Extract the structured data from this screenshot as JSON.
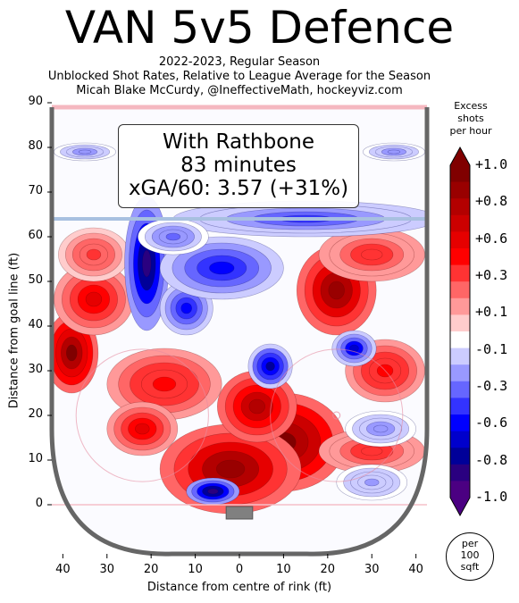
{
  "header": {
    "title": "VAN 5v5 Defence",
    "subtitle_1": "2022-2023, Regular Season",
    "subtitle_2": "Unblocked Shot Rates, Relative to League Average for the Season",
    "subtitle_3": "Micah Blake McCurdy, @IneffectiveMath, hockeyviz.com"
  },
  "annotation": {
    "line1": "With Rathbone",
    "line2": "83 minutes",
    "line3": "xGA/60: 3.57 (+31%)"
  },
  "legend": {
    "title_1": "Excess",
    "title_2": "shots",
    "title_3": "per hour",
    "ticks": [
      "+1.0",
      "+0.8",
      "+0.6",
      "+0.3",
      "+0.1",
      "-0.1",
      "-0.3",
      "-0.6",
      "-0.8",
      "-1.0"
    ],
    "unit_1": "per",
    "unit_2": "100",
    "unit_3": "sqft",
    "colors": [
      "#800000",
      "#990000",
      "#b30000",
      "#cc0000",
      "#e60000",
      "#ff0000",
      "#ff3333",
      "#ff6666",
      "#ff9999",
      "#ffcccc",
      "#ffffff",
      "#ccccff",
      "#9999ff",
      "#6666ff",
      "#3333ff",
      "#0000ff",
      "#0000cc",
      "#000099",
      "#2a0080",
      "#4b0082"
    ]
  },
  "chart_data": {
    "type": "heatmap",
    "title": "VAN 5v5 Defence",
    "xlabel": "Distance from centre of rink (ft)",
    "ylabel": "Distance from goal line (ft)",
    "xlim": [
      -42.5,
      42.5
    ],
    "ylim": [
      -11,
      89
    ],
    "x_axis_reversed": true,
    "x_ticks": [
      "40",
      "30",
      "20",
      "10",
      "0",
      "10",
      "20",
      "30",
      "40"
    ],
    "x_tick_values": [
      -40,
      -30,
      -20,
      -10,
      0,
      10,
      20,
      30,
      40
    ],
    "y_ticks": [
      "0",
      "10",
      "20",
      "30",
      "40",
      "50",
      "60",
      "70",
      "80",
      "90"
    ],
    "y_tick_values": [
      0,
      10,
      20,
      30,
      40,
      50,
      60,
      70,
      80,
      90
    ],
    "color_range": [
      -1.0,
      1.0
    ],
    "blobs": [
      {
        "x": -10,
        "y": 14,
        "value": 1.0,
        "rx": 14,
        "ry": 11
      },
      {
        "x": 2,
        "y": 8,
        "value": 0.9,
        "rx": 16,
        "ry": 10
      },
      {
        "x": -4,
        "y": 22,
        "value": 0.8,
        "rx": 9,
        "ry": 8
      },
      {
        "x": 17,
        "y": 27,
        "value": 0.5,
        "rx": 13,
        "ry": 8
      },
      {
        "x": -22,
        "y": 48,
        "value": 0.9,
        "rx": 9,
        "ry": 10
      },
      {
        "x": -30,
        "y": 56,
        "value": 0.4,
        "rx": 12,
        "ry": 6
      },
      {
        "x": 38,
        "y": 34,
        "value": 0.95,
        "rx": 6,
        "ry": 9
      },
      {
        "x": 33,
        "y": 46,
        "value": 0.6,
        "rx": 9,
        "ry": 8
      },
      {
        "x": 22,
        "y": 17,
        "value": 0.6,
        "rx": 8,
        "ry": 6
      },
      {
        "x": -33,
        "y": 30,
        "value": 0.5,
        "rx": 9,
        "ry": 7
      },
      {
        "x": -30,
        "y": 12,
        "value": 0.4,
        "rx": 12,
        "ry": 5
      },
      {
        "x": 33,
        "y": 56,
        "value": 0.35,
        "rx": 8,
        "ry": 6
      },
      {
        "x": 21,
        "y": 54,
        "value": -0.9,
        "rx": 5,
        "ry": 15
      },
      {
        "x": 12,
        "y": 44,
        "value": -0.55,
        "rx": 6,
        "ry": 6
      },
      {
        "x": -7,
        "y": 31,
        "value": -0.75,
        "rx": 5,
        "ry": 5
      },
      {
        "x": -26,
        "y": 35,
        "value": -0.65,
        "rx": 5,
        "ry": 4
      },
      {
        "x": 6,
        "y": 3,
        "value": -0.9,
        "rx": 6,
        "ry": 3
      },
      {
        "x": 4,
        "y": 53,
        "value": -0.55,
        "rx": 14,
        "ry": 7
      },
      {
        "x": -15,
        "y": 64,
        "value": -0.45,
        "rx": 30,
        "ry": 4
      },
      {
        "x": -32,
        "y": 17,
        "value": -0.3,
        "rx": 8,
        "ry": 4
      },
      {
        "x": -30,
        "y": 5,
        "value": -0.25,
        "rx": 8,
        "ry": 4
      },
      {
        "x": 35,
        "y": 79,
        "value": -0.3,
        "rx": 7,
        "ry": 2
      },
      {
        "x": -35,
        "y": 79,
        "value": -0.3,
        "rx": 7,
        "ry": 2
      },
      {
        "x": 15,
        "y": 60,
        "value": -0.35,
        "rx": 8,
        "ry": 4
      }
    ]
  }
}
